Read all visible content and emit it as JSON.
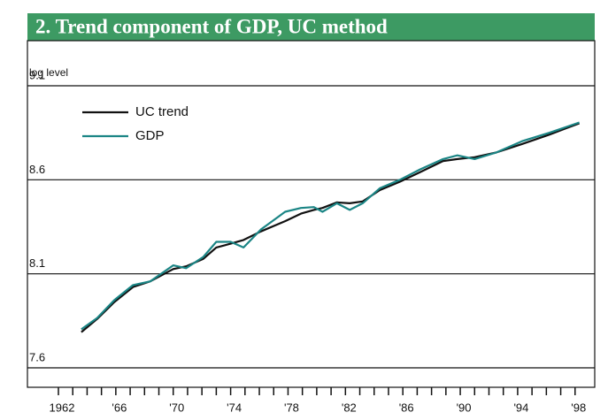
{
  "chart_data": {
    "type": "line",
    "title": "2. Trend component of GDP, UC method",
    "y_label": "log level",
    "x": [
      1963.6,
      1964.7,
      1965.9,
      1967.2,
      1968.4,
      1970.0,
      1970.9,
      1972.1,
      1973.0,
      1974.0,
      1974.9,
      1976.1,
      1977.8,
      1978.9,
      1979.8,
      1980.4,
      1981.4,
      1982.3,
      1983.2,
      1984.4,
      1985.8,
      1987.2,
      1988.8,
      1989.8,
      1991.0,
      1992.5,
      1994.3,
      1996.2,
      1998.3
    ],
    "series": [
      {
        "name": "UC trend",
        "color": "#111111",
        "values": [
          7.79,
          7.86,
          7.95,
          8.03,
          8.06,
          8.125,
          8.14,
          8.18,
          8.24,
          8.26,
          8.28,
          8.325,
          8.38,
          8.42,
          8.44,
          8.45,
          8.48,
          8.475,
          8.485,
          8.545,
          8.59,
          8.64,
          8.7,
          8.71,
          8.72,
          8.745,
          8.79,
          8.84,
          8.9
        ]
      },
      {
        "name": "GDP",
        "color": "#1b8585",
        "values": [
          7.805,
          7.865,
          7.96,
          8.04,
          8.06,
          8.145,
          8.13,
          8.19,
          8.27,
          8.27,
          8.24,
          8.335,
          8.43,
          8.45,
          8.455,
          8.43,
          8.475,
          8.44,
          8.475,
          8.555,
          8.6,
          8.655,
          8.71,
          8.73,
          8.71,
          8.745,
          8.805,
          8.85,
          8.905
        ]
      }
    ],
    "xlim": [
      1962,
      1999
    ],
    "xticks": [
      {
        "value": 1962,
        "label": "1962"
      },
      {
        "value": 1966,
        "label": "'66"
      },
      {
        "value": 1970,
        "label": "'70"
      },
      {
        "value": 1974,
        "label": "'74"
      },
      {
        "value": 1978,
        "label": "'78"
      },
      {
        "value": 1982,
        "label": "'82"
      },
      {
        "value": 1986,
        "label": "'86"
      },
      {
        "value": 1990,
        "label": "'90"
      },
      {
        "value": 1994,
        "label": "'94"
      },
      {
        "value": 1998,
        "label": "'98"
      }
    ],
    "xminorticks": [
      1963,
      1964,
      1965,
      1967,
      1968,
      1969,
      1971,
      1972,
      1973,
      1975,
      1976,
      1977,
      1979,
      1980,
      1981,
      1983,
      1984,
      1985,
      1987,
      1988,
      1989,
      1991,
      1992,
      1993,
      1995,
      1996,
      1997
    ],
    "ylim": [
      7.6,
      9.1
    ],
    "yticks": [
      7.6,
      8.1,
      8.6,
      9.1
    ],
    "grid": true
  }
}
